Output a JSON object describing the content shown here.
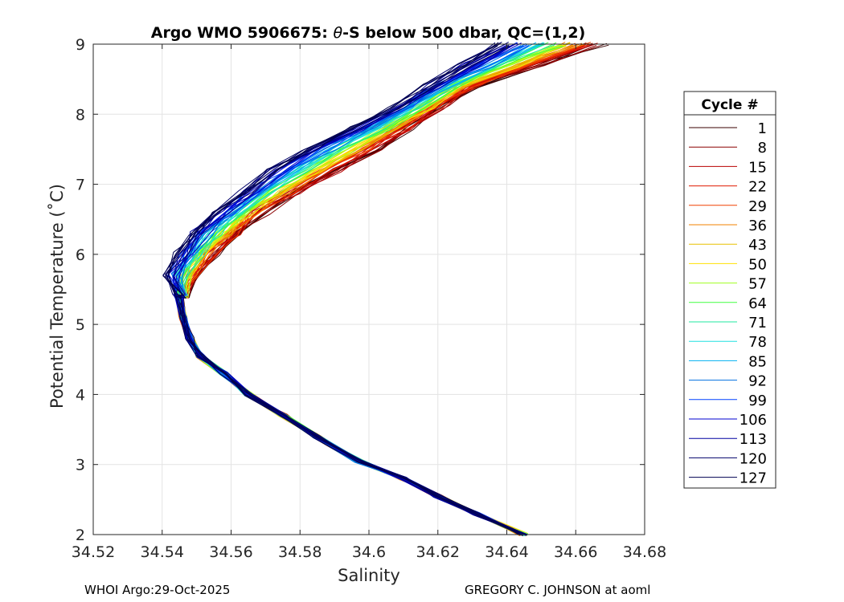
{
  "chart_data": {
    "type": "line",
    "title": "Argo WMO 5906675: θ-S below 500 dbar,  QC=(1,2)",
    "title_parts": {
      "prefix": "Argo WMO 5906675: ",
      "symbol": "θ",
      "suffix": "-S below 500 dbar,  QC=(1,2)"
    },
    "xlabel": "Salinity",
    "ylabel": "Potential Temperature (˚C)",
    "xlim": [
      34.52,
      34.68
    ],
    "ylim": [
      2,
      9
    ],
    "xticks": [
      34.52,
      34.54,
      34.56,
      34.58,
      34.6,
      34.62,
      34.64,
      34.66,
      34.68
    ],
    "xtick_labels": [
      "34.52",
      "34.54",
      "34.56",
      "34.58",
      "34.6",
      "34.62",
      "34.64",
      "34.66",
      "34.68"
    ],
    "yticks": [
      2,
      3,
      4,
      5,
      6,
      7,
      8,
      9
    ],
    "ytick_labels": [
      "2",
      "3",
      "4",
      "5",
      "6",
      "7",
      "8",
      "9"
    ],
    "grid": true,
    "legend": {
      "title": "Cycle #",
      "placement": "outside-right",
      "entries": [
        {
          "label": "1",
          "color": "#3a0000"
        },
        {
          "label": "8",
          "color": "#8b0000"
        },
        {
          "label": "15",
          "color": "#b80000"
        },
        {
          "label": "22",
          "color": "#e01a00"
        },
        {
          "label": "29",
          "color": "#f04000"
        },
        {
          "label": "36",
          "color": "#f08000"
        },
        {
          "label": "43",
          "color": "#e8c000"
        },
        {
          "label": "50",
          "color": "#ffe000"
        },
        {
          "label": "57",
          "color": "#a0ff20"
        },
        {
          "label": "64",
          "color": "#40ff40"
        },
        {
          "label": "71",
          "color": "#20e8a0"
        },
        {
          "label": "78",
          "color": "#20e0e0"
        },
        {
          "label": "85",
          "color": "#00b0f0"
        },
        {
          "label": "92",
          "color": "#0070e0"
        },
        {
          "label": "99",
          "color": "#0040ff"
        },
        {
          "label": "106",
          "color": "#0000d0"
        },
        {
          "label": "113",
          "color": "#0000a0"
        },
        {
          "label": "120",
          "color": "#00006a"
        },
        {
          "label": "127",
          "color": "#000050"
        }
      ]
    },
    "series_template": {
      "S": [
        34.645,
        34.631,
        34.62,
        34.61,
        34.597,
        34.585,
        34.575,
        34.565,
        34.558,
        34.551,
        34.548,
        34.546,
        34.545
      ],
      "theta": [
        2.0,
        2.3,
        2.55,
        2.8,
        3.05,
        3.4,
        3.7,
        4.0,
        4.3,
        4.55,
        4.8,
        5.1,
        5.4
      ]
    },
    "upper_branch": {
      "theta": [
        5.4,
        5.7,
        6.0,
        6.3,
        6.6,
        6.9,
        7.2,
        7.5,
        7.8,
        8.1,
        8.4,
        8.7,
        9.0
      ],
      "S_early": [
        34.546,
        34.55,
        34.556,
        34.563,
        34.57,
        34.58,
        34.592,
        34.603,
        34.613,
        34.622,
        34.632,
        34.65,
        34.668
      ],
      "S_late": [
        34.545,
        34.542,
        34.545,
        34.549,
        34.556,
        34.563,
        34.571,
        34.582,
        34.595,
        34.607,
        34.617,
        34.627,
        34.638
      ]
    }
  },
  "footer": {
    "left": "WHOI Argo:29-Oct-2025",
    "right": "GREGORY C. JOHNSON at aoml"
  }
}
